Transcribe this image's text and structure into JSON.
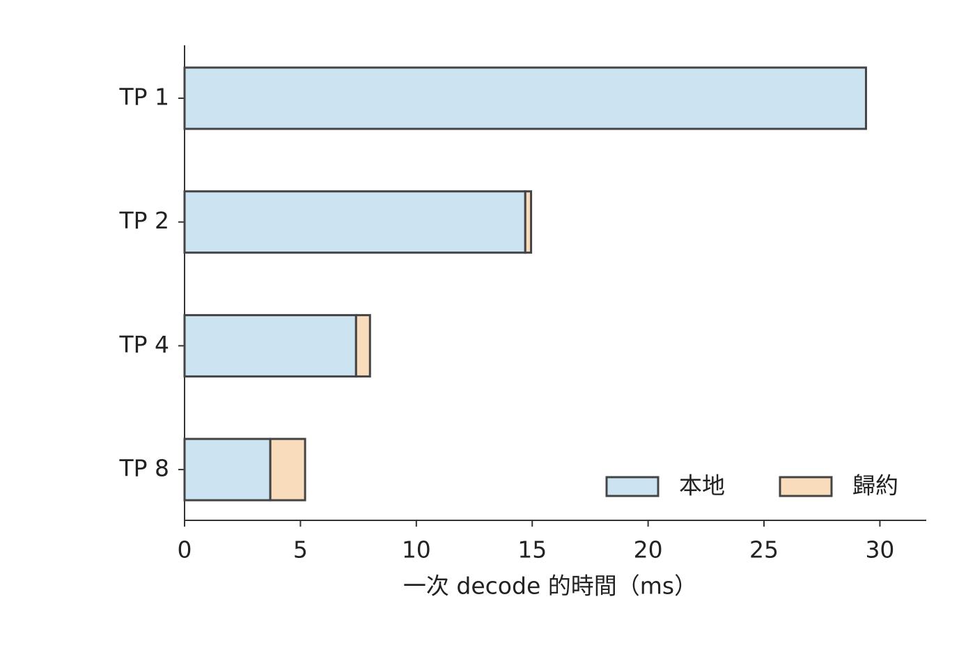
{
  "chart_data": {
    "type": "barh_stacked",
    "xlabel": "一次 decode 的時間（ms）",
    "categories": [
      "TP 1",
      "TP 2",
      "TP 4",
      "TP 8"
    ],
    "series": [
      {
        "name": "本地",
        "color": "#cce3f2",
        "values": [
          29.4,
          14.7,
          7.4,
          3.7
        ]
      },
      {
        "name": "歸約",
        "color": "#f8dcbc",
        "values": [
          0,
          0.25,
          0.6,
          1.5
        ]
      }
    ],
    "xlim": [
      0,
      32
    ],
    "xticks": [
      0,
      5,
      10,
      15,
      20,
      25,
      30
    ],
    "legend": "lower right",
    "edgecolor": "#444444"
  }
}
